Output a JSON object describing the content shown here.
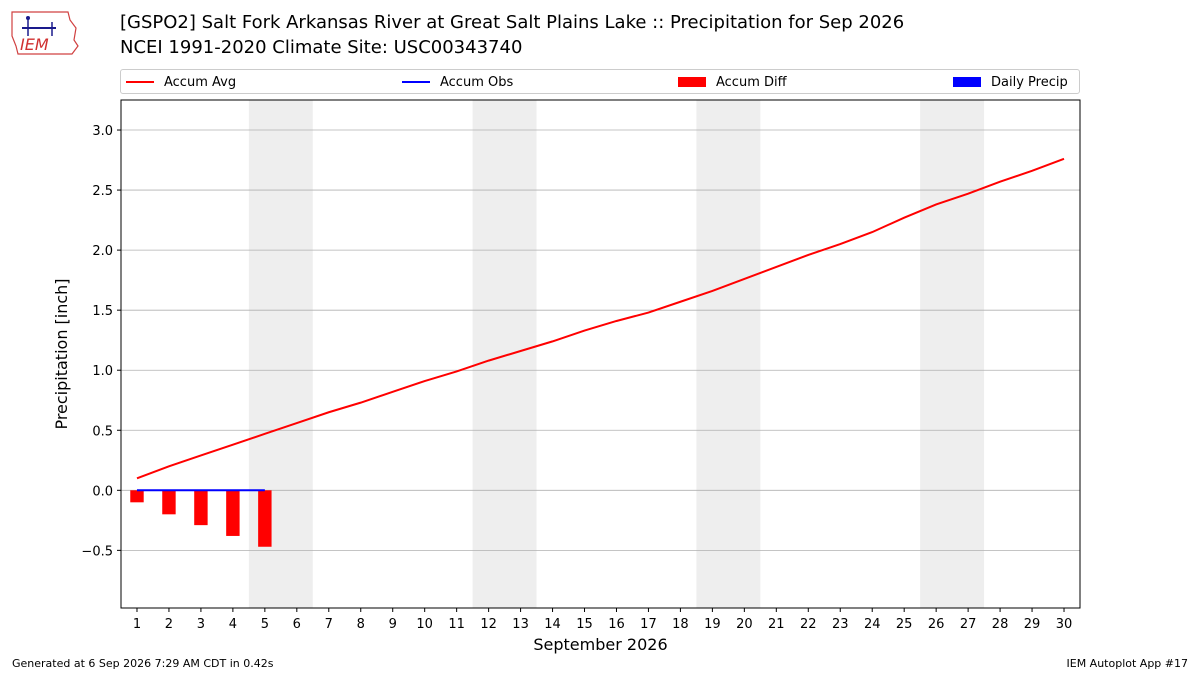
{
  "title_line1": "[GSPO2] Salt Fork Arkansas River at Great Salt Plains Lake :: Precipitation for Sep 2026",
  "title_line2": "NCEI 1991-2020 Climate Site: USC00343740",
  "logo_text": "IEM",
  "footer_left": "Generated at 6 Sep 2026 7:29 AM CDT in 0.42s",
  "footer_right": "IEM Autoplot App #17",
  "colors": {
    "avg": "#ff0000",
    "obs": "#0000ff",
    "diff": "#ff0000",
    "daily": "#0000ff",
    "weekend": "#eeeeee",
    "grid": "#b0b0b0"
  },
  "chart_data": {
    "type": "line",
    "xlabel": "September 2026",
    "ylabel": "Precipitation [inch]",
    "ylim": [
      -0.98,
      3.25
    ],
    "xlim": [
      0.5,
      30.5
    ],
    "yticks": [
      -0.5,
      0.0,
      0.5,
      1.0,
      1.5,
      2.0,
      2.5,
      3.0
    ],
    "ytick_labels": [
      "−0.5",
      "0.0",
      "0.5",
      "1.0",
      "1.5",
      "2.0",
      "2.5",
      "3.0"
    ],
    "x": [
      1,
      2,
      3,
      4,
      5,
      6,
      7,
      8,
      9,
      10,
      11,
      12,
      13,
      14,
      15,
      16,
      17,
      18,
      19,
      20,
      21,
      22,
      23,
      24,
      25,
      26,
      27,
      28,
      29,
      30
    ],
    "grid": "horizontal",
    "legend_position": "top",
    "legend": [
      "Accum Avg",
      "Accum Obs",
      "Accum Diff",
      "Daily Precip"
    ],
    "weekend_shading": [
      [
        4.5,
        6.5
      ],
      [
        11.5,
        13.5
      ],
      [
        18.5,
        20.5
      ],
      [
        25.5,
        27.5
      ]
    ],
    "series": [
      {
        "name": "Accum Avg",
        "kind": "line",
        "color": "#ff0000",
        "x": [
          1,
          2,
          3,
          4,
          5,
          6,
          7,
          8,
          9,
          10,
          11,
          12,
          13,
          14,
          15,
          16,
          17,
          18,
          19,
          20,
          21,
          22,
          23,
          24,
          25,
          26,
          27,
          28,
          29,
          30
        ],
        "values": [
          0.1,
          0.2,
          0.29,
          0.38,
          0.47,
          0.56,
          0.65,
          0.73,
          0.82,
          0.91,
          0.99,
          1.08,
          1.16,
          1.24,
          1.33,
          1.41,
          1.48,
          1.57,
          1.66,
          1.76,
          1.86,
          1.96,
          2.05,
          2.15,
          2.27,
          2.38,
          2.47,
          2.57,
          2.66,
          2.76
        ]
      },
      {
        "name": "Accum Obs",
        "kind": "line",
        "color": "#0000ff",
        "x": [
          1,
          2,
          3,
          4,
          5
        ],
        "values": [
          0.0,
          0.0,
          0.0,
          0.0,
          0.0
        ]
      },
      {
        "name": "Accum Diff",
        "kind": "bar",
        "color": "#ff0000",
        "x": [
          1,
          2,
          3,
          4,
          5
        ],
        "values": [
          -0.1,
          -0.2,
          -0.29,
          -0.38,
          -0.47
        ]
      },
      {
        "name": "Daily Precip",
        "kind": "bar",
        "color": "#0000ff",
        "x": [
          1,
          2,
          3,
          4,
          5
        ],
        "values": [
          0.0,
          0.0,
          0.0,
          0.0,
          0.0
        ]
      }
    ]
  }
}
